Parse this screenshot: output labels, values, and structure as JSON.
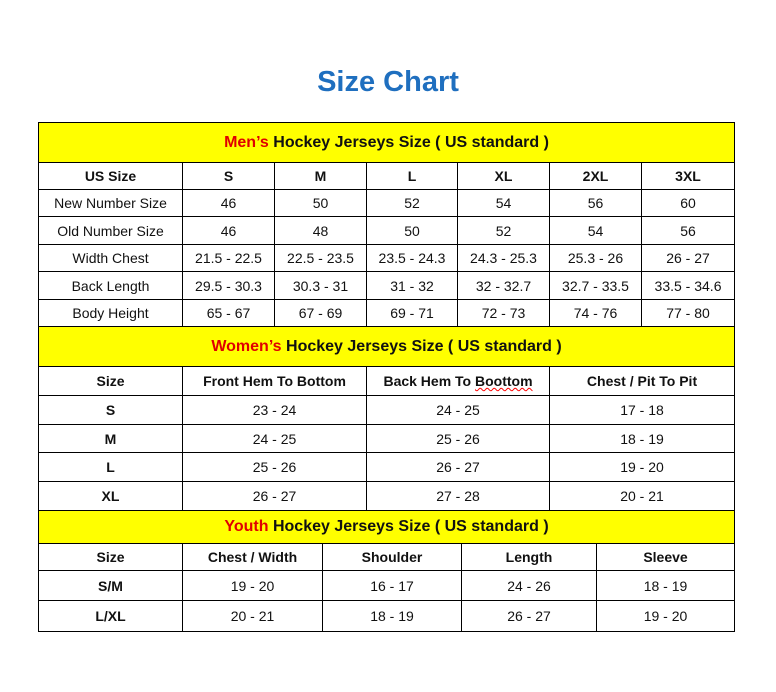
{
  "title": "Size Chart",
  "colors": {
    "title": "#1f6fbf",
    "banner": "#ffff00",
    "highlight": "#e00000"
  },
  "men": {
    "caption_highlight": "Men’s",
    "caption_rest": " Hockey Jerseys Size ( US standard )",
    "headers": [
      "US Size",
      "S",
      "M",
      "L",
      "XL",
      "2XL",
      "3XL"
    ],
    "rows": [
      [
        "New Number Size",
        "46",
        "50",
        "52",
        "54",
        "56",
        "60"
      ],
      [
        "Old Number Size",
        "46",
        "48",
        "50",
        "52",
        "54",
        "56"
      ],
      [
        "Width Chest",
        "21.5 - 22.5",
        "22.5 - 23.5",
        "23.5 - 24.3",
        "24.3 - 25.3",
        "25.3 - 26",
        "26 - 27"
      ],
      [
        "Back Length",
        "29.5 - 30.3",
        "30.3 - 31",
        "31 - 32",
        "32 - 32.7",
        "32.7 - 33.5",
        "33.5 - 34.6"
      ],
      [
        "Body Height",
        "65 - 67",
        "67 - 69",
        "69 - 71",
        "72 - 73",
        "74 - 76",
        "77 - 80"
      ]
    ]
  },
  "women": {
    "caption_highlight": "Women’s",
    "caption_rest": " Hockey Jerseys Size ( US standard )",
    "headers": [
      "Size",
      "Front Hem To Bottom",
      "Back Hem To Boottom",
      "Chest / Pit To Pit"
    ],
    "rows": [
      [
        "S",
        "23 - 24",
        "24 - 25",
        "17 - 18"
      ],
      [
        "M",
        "24 - 25",
        "25 - 26",
        "18 - 19"
      ],
      [
        "L",
        "25 - 26",
        "26 - 27",
        "19 - 20"
      ],
      [
        "XL",
        "26 - 27",
        "27 - 28",
        "20 - 21"
      ]
    ]
  },
  "youth": {
    "caption_highlight": "Youth",
    "caption_rest": " Hockey Jerseys Size ( US standard )",
    "headers": [
      "Size",
      "Chest / Width",
      "Shoulder",
      "Length",
      "Sleeve"
    ],
    "rows": [
      [
        "S/M",
        "19 - 20",
        "16 - 17",
        "24 - 26",
        "18 - 19"
      ],
      [
        "L/XL",
        "20 - 21",
        "18 - 19",
        "26 - 27",
        "19 - 20"
      ]
    ]
  }
}
